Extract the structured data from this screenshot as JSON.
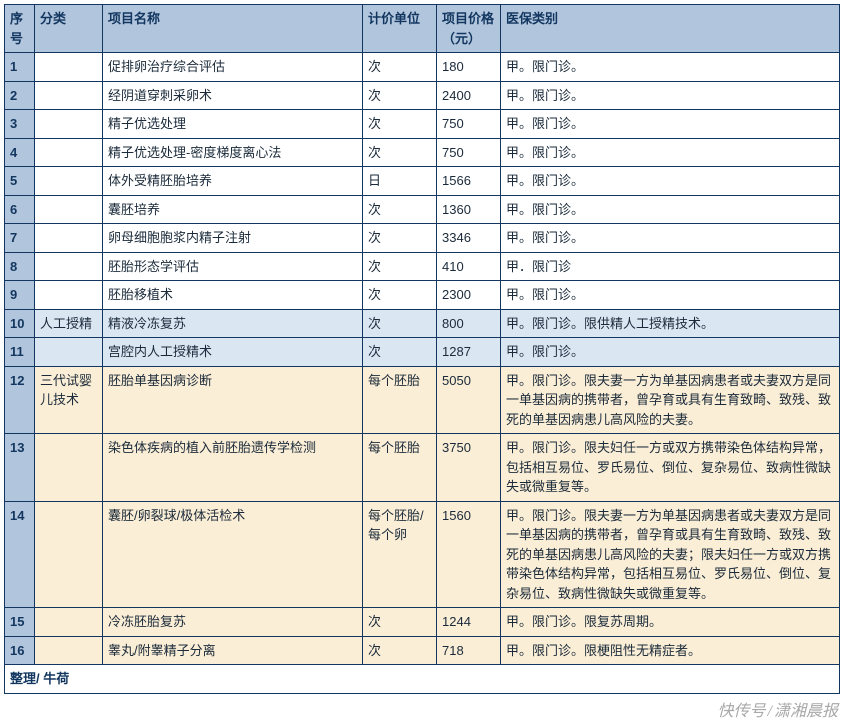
{
  "header": {
    "seq": "序号",
    "category": "分类",
    "name": "项目名称",
    "unit": "计价单位",
    "price": "项目价格（元）",
    "insurance": "医保类别"
  },
  "rows": [
    {
      "seq": "1",
      "category": "",
      "name": "促排卵治疗综合评估",
      "unit": "次",
      "price": "180",
      "insurance": "甲。限门诊。",
      "bg": "bg-white"
    },
    {
      "seq": "2",
      "category": "",
      "name": "经阴道穿刺采卵术",
      "unit": "次",
      "price": "2400",
      "insurance": "甲。限门诊。",
      "bg": "bg-white"
    },
    {
      "seq": "3",
      "category": "",
      "name": "精子优选处理",
      "unit": "次",
      "price": "750",
      "insurance": "甲。限门诊。",
      "bg": "bg-white"
    },
    {
      "seq": "4",
      "category": "",
      "name": "精子优选处理-密度梯度离心法",
      "unit": "次",
      "price": "750",
      "insurance": "甲。限门诊。",
      "bg": "bg-white"
    },
    {
      "seq": "5",
      "category": "",
      "name": "体外受精胚胎培养",
      "unit": "日",
      "price": "1566",
      "insurance": "甲。限门诊。",
      "bg": "bg-white"
    },
    {
      "seq": "6",
      "category": "",
      "name": "囊胚培养",
      "unit": "次",
      "price": "1360",
      "insurance": "甲。限门诊。",
      "bg": "bg-white"
    },
    {
      "seq": "7",
      "category": "",
      "name": "卵母细胞胞浆内精子注射",
      "unit": "次",
      "price": "3346",
      "insurance": "甲。限门诊。",
      "bg": "bg-white"
    },
    {
      "seq": "8",
      "category": "",
      "name": "胚胎形态学评估",
      "unit": "次",
      "price": "410",
      "insurance": "甲．限门诊",
      "bg": "bg-white"
    },
    {
      "seq": "9",
      "category": "",
      "name": "胚胎移植术",
      "unit": "次",
      "price": "2300",
      "insurance": "甲。限门诊。",
      "bg": "bg-white"
    },
    {
      "seq": "10",
      "category": "人工授精",
      "name": "精液冷冻复苏",
      "unit": "次",
      "price": "800",
      "insurance": "甲。限门诊。限供精人工授精技术。",
      "bg": "bg-blue"
    },
    {
      "seq": "11",
      "category": "",
      "name": "宫腔内人工授精术",
      "unit": "次",
      "price": "1287",
      "insurance": "甲。限门诊。",
      "bg": "bg-blue"
    },
    {
      "seq": "12",
      "category": "三代试婴儿技术",
      "name": "胚胎单基因病诊断",
      "unit": "每个胚胎",
      "price": "5050",
      "insurance": "甲。限门诊。限夫妻一方为单基因病患者或夫妻双方是同一单基因病的携带者，曾孕育或具有生育致畸、致残、致死的单基因病患儿高风险的夫妻。",
      "bg": "bg-cream"
    },
    {
      "seq": "13",
      "category": "",
      "name": "染色体疾病的植入前胚胎遗传学检测",
      "unit": "每个胚胎",
      "price": "3750",
      "insurance": "甲。限门诊。限夫妇任一方或双方携带染色体结构异常，包括相互易位、罗氏易位、倒位、复杂易位、致病性微缺失或微重复等。",
      "bg": "bg-cream"
    },
    {
      "seq": "14",
      "category": "",
      "name": "囊胚/卵裂球/极体活检术",
      "unit": "每个胚胎/每个卵",
      "price": "1560",
      "insurance": "甲。限门诊。限夫妻一方为单基因病患者或夫妻双方是同一单基因病的携带者，曾孕育或具有生育致畸、致残、致死的单基因病患儿高风险的夫妻；限夫妇任一方或双方携带染色体结构异常，包括相互易位、罗氏易位、倒位、复杂易位、致病性微缺失或微重复等。",
      "bg": "bg-cream"
    },
    {
      "seq": "15",
      "category": "",
      "name": "冷冻胚胎复苏",
      "unit": "次",
      "price": "1244",
      "insurance": "甲。限门诊。限复苏周期。",
      "bg": "bg-cream"
    },
    {
      "seq": "16",
      "category": "",
      "name": "睾丸/附睾精子分离",
      "unit": "次",
      "price": "718",
      "insurance": "甲。限门诊。限梗阻性无精症者。",
      "bg": "bg-cream"
    }
  ],
  "footer": "整理/ 牛荷",
  "watermark": {
    "left": "快传号",
    "right": "潇湘晨报"
  },
  "colors": {
    "header_bg": "#b1c5dd",
    "border": "#12365f",
    "white": "#ffffff",
    "blue": "#dbe6f3",
    "cream": "#fbeed6"
  }
}
